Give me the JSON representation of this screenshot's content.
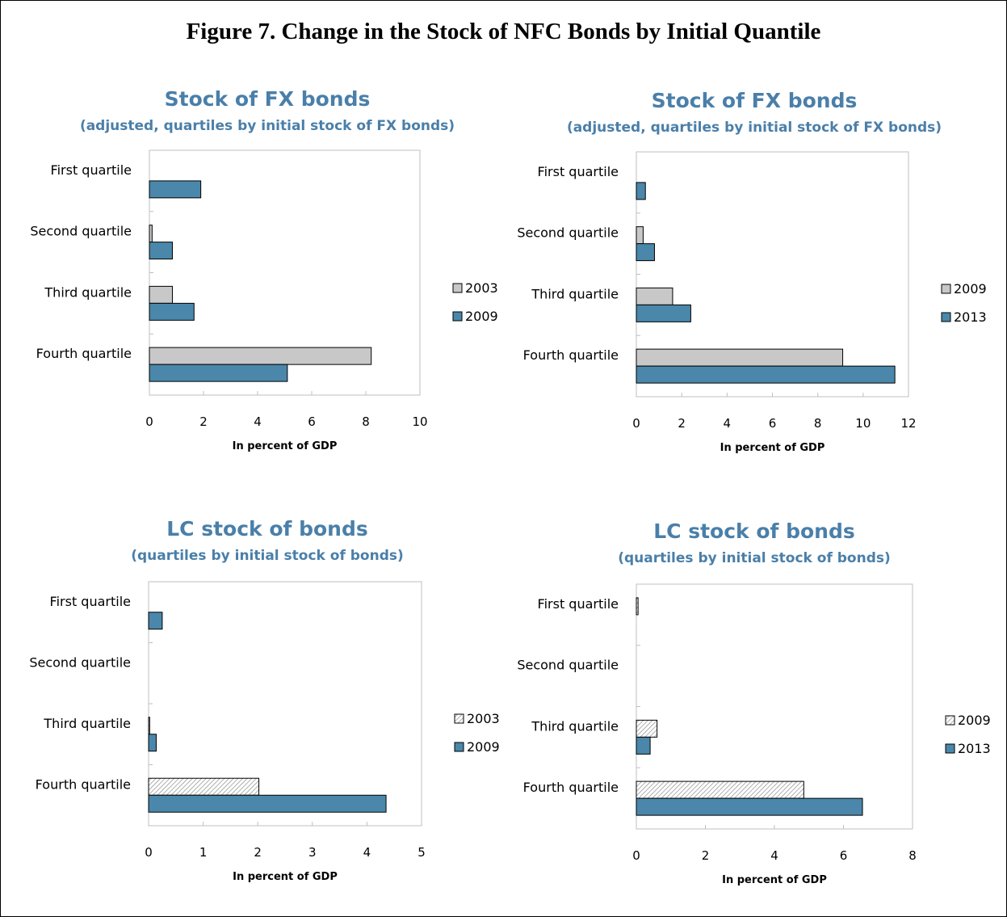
{
  "figure_title": "Figure 7. Change in the Stock of NFC Bonds by Initial Quantile",
  "colors": {
    "title": "#4a7fa9",
    "bar_gray": "#c8c8c8",
    "bar_blue": "#4a87aa",
    "plot_border": "#bfbfbf"
  },
  "chart_data": [
    {
      "type": "bar",
      "orientation": "horizontal",
      "title": "Stock of FX bonds",
      "subtitle": "(adjusted, quartiles by initial stock of FX bonds)",
      "xlabel": "In percent of GDP",
      "categories": [
        "First quartile",
        "Second quartile",
        "Third quartile",
        "Fourth quartile"
      ],
      "xlim": [
        0,
        10
      ],
      "xticks": [
        0,
        2,
        4,
        6,
        8,
        10
      ],
      "series": [
        {
          "name": "2003",
          "color": "#c8c8c8",
          "pattern": "solid",
          "values": [
            0,
            0.1,
            0.85,
            8.2
          ]
        },
        {
          "name": "2009",
          "color": "#4a87aa",
          "pattern": "solid",
          "values": [
            1.9,
            0.85,
            1.65,
            5.1
          ]
        }
      ],
      "legend": "right",
      "grid": false
    },
    {
      "type": "bar",
      "orientation": "horizontal",
      "title": "Stock of FX bonds",
      "subtitle": "(adjusted, quartiles by initial stock of FX bonds)",
      "xlabel": "In percent of GDP",
      "categories": [
        "First quartile",
        "Second quartile",
        "Third quartile",
        "Fourth quartile"
      ],
      "xlim": [
        0,
        12
      ],
      "xticks": [
        0,
        2,
        4,
        6,
        8,
        10,
        12
      ],
      "series": [
        {
          "name": "2009",
          "color": "#c8c8c8",
          "pattern": "solid",
          "values": [
            0,
            0.3,
            1.6,
            9.1
          ]
        },
        {
          "name": "2013",
          "color": "#4a87aa",
          "pattern": "solid",
          "values": [
            0.4,
            0.8,
            2.4,
            11.4
          ]
        }
      ],
      "legend": "right",
      "grid": false
    },
    {
      "type": "bar",
      "orientation": "horizontal",
      "title": "LC stock of bonds",
      "subtitle": "(quartiles by initial stock of bonds)",
      "xlabel": "In percent of GDP",
      "categories": [
        "First quartile",
        "Second quartile",
        "Third quartile",
        "Fourth quartile"
      ],
      "xlim": [
        0,
        5
      ],
      "xticks": [
        0,
        1,
        2,
        3,
        4,
        5
      ],
      "series": [
        {
          "name": "2003",
          "color": "#c8c8c8",
          "pattern": "hatched",
          "values": [
            0,
            0,
            0.02,
            2.02
          ]
        },
        {
          "name": "2009",
          "color": "#4a87aa",
          "pattern": "solid",
          "values": [
            0.25,
            0,
            0.14,
            4.35
          ]
        }
      ],
      "legend": "right",
      "grid": false
    },
    {
      "type": "bar",
      "orientation": "horizontal",
      "title": "LC stock of bonds",
      "subtitle": "(quartiles by initial stock of bonds)",
      "xlabel": "In percent of GDP",
      "categories": [
        "First quartile",
        "Second quartile",
        "Third quartile",
        "Fourth quartile"
      ],
      "xlim": [
        0,
        8
      ],
      "xticks": [
        0,
        2,
        4,
        6,
        8
      ],
      "series": [
        {
          "name": "2009",
          "color": "#c8c8c8",
          "pattern": "hatched",
          "values": [
            0.05,
            0,
            0.6,
            4.85
          ]
        },
        {
          "name": "2013",
          "color": "#4a87aa",
          "pattern": "solid",
          "values": [
            0,
            0,
            0.4,
            6.55
          ]
        }
      ],
      "legend": "right",
      "grid": false
    }
  ]
}
